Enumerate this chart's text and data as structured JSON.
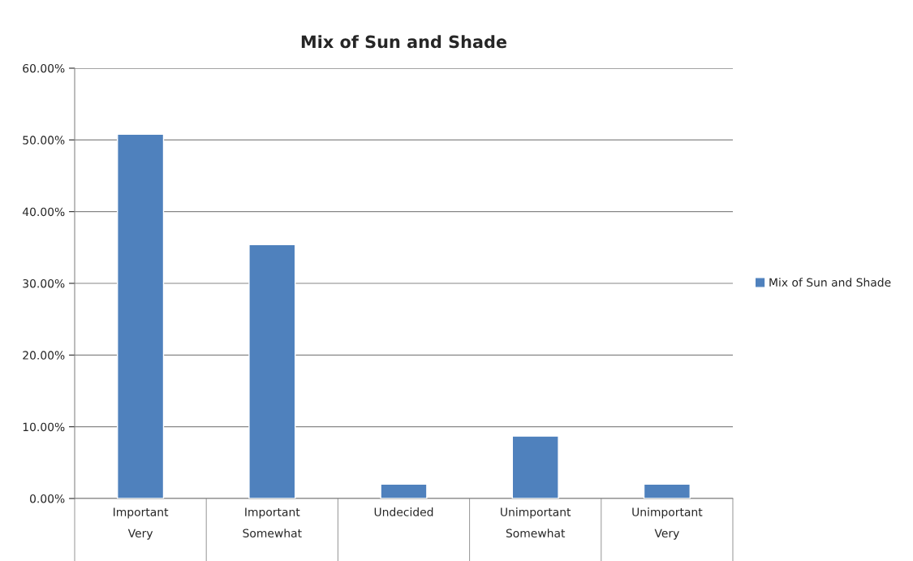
{
  "chart_data": {
    "type": "bar",
    "title": "Mix of Sun and Shade",
    "categories": [
      "Important\nVery",
      "Important\nSomewhat",
      "Undecided",
      "Unimportant\nSomewhat",
      "Unimportant\nVery"
    ],
    "series": [
      {
        "name": "Mix of Sun and Shade",
        "color": "#4f81bd",
        "values": [
          50.8,
          35.4,
          2.0,
          8.7,
          2.0
        ]
      }
    ],
    "ylim": [
      0,
      60
    ],
    "yticks": [
      {
        "value": 0,
        "label": "0.00%"
      },
      {
        "value": 10,
        "label": "10.00%"
      },
      {
        "value": 20,
        "label": "20.00%"
      },
      {
        "value": 30,
        "label": "30.00%"
      },
      {
        "value": 40,
        "label": "40.00%"
      },
      {
        "value": 50,
        "label": "50.00%"
      },
      {
        "value": 60,
        "label": "60.00%"
      }
    ],
    "grid": "y",
    "legend": "right"
  }
}
